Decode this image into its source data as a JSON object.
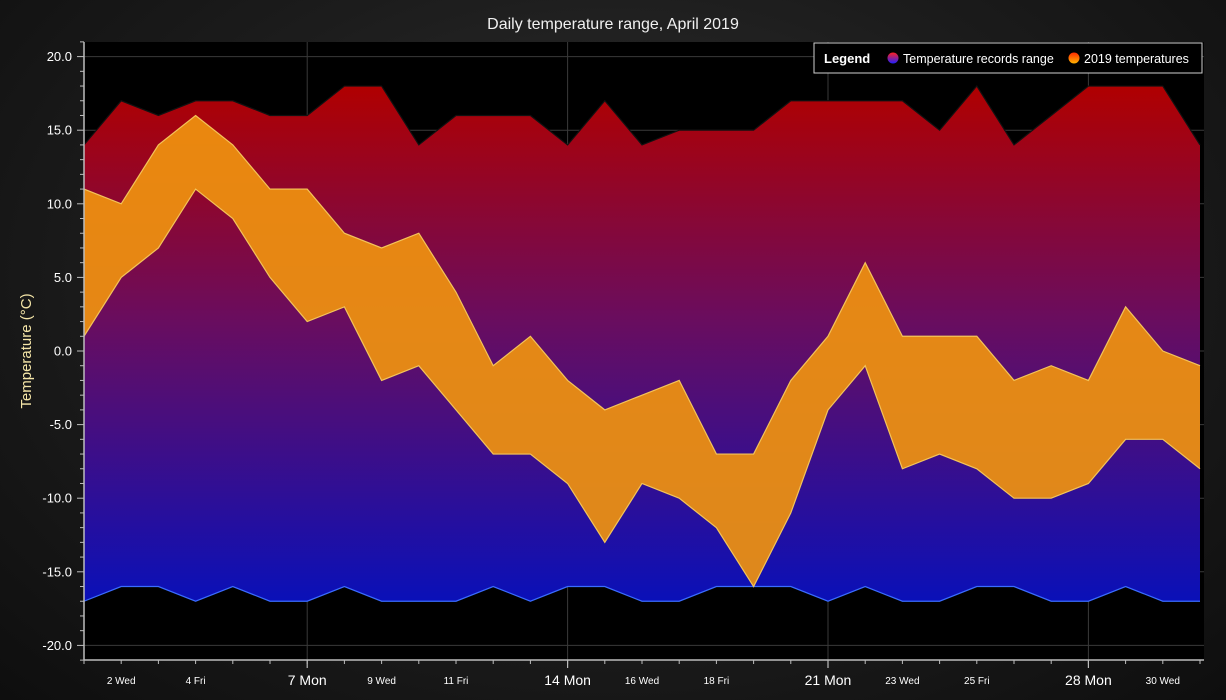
{
  "chart_data": {
    "type": "area",
    "title": "Daily temperature range, April 2019",
    "xlabel": "",
    "ylabel": "Temperature (°C)",
    "ylim": [
      -21,
      21
    ],
    "xlim": [
      1,
      31
    ],
    "y_ticks": [
      {
        "value": 20,
        "label": "20.0"
      },
      {
        "value": 15,
        "label": "15.0"
      },
      {
        "value": 10,
        "label": "10.0"
      },
      {
        "value": 5,
        "label": "5.0"
      },
      {
        "value": 0,
        "label": "0.0"
      },
      {
        "value": -5,
        "label": "-5.0"
      },
      {
        "value": -10,
        "label": "-10.0"
      },
      {
        "value": -15,
        "label": "-15.0"
      },
      {
        "value": -20,
        "label": "-20.0"
      }
    ],
    "x_ticks_major": [
      {
        "day": 7,
        "label": "7 Mon"
      },
      {
        "day": 14,
        "label": "14 Mon"
      },
      {
        "day": 21,
        "label": "21 Mon"
      },
      {
        "day": 28,
        "label": "28 Mon"
      }
    ],
    "x_ticks_minor": [
      {
        "day": 2,
        "label": "2 Wed"
      },
      {
        "day": 4,
        "label": "4 Fri"
      },
      {
        "day": 9,
        "label": "9 Wed"
      },
      {
        "day": 11,
        "label": "11 Fri"
      },
      {
        "day": 16,
        "label": "16 Wed"
      },
      {
        "day": 18,
        "label": "18 Fri"
      },
      {
        "day": 23,
        "label": "23 Wed"
      },
      {
        "day": 25,
        "label": "25 Fri"
      },
      {
        "day": 30,
        "label": "30 Wed"
      }
    ],
    "legend": {
      "title": "Legend",
      "position": "top-right",
      "entries": [
        "Temperature records range",
        "2019 temperatures"
      ]
    },
    "series": [
      {
        "name": "Temperature records range",
        "days": [
          1,
          2,
          3,
          4,
          5,
          6,
          7,
          8,
          9,
          10,
          11,
          12,
          13,
          14,
          15,
          16,
          17,
          18,
          19,
          20,
          21,
          22,
          23,
          24,
          25,
          26,
          27,
          28,
          29,
          30,
          31
        ],
        "high": [
          14,
          17,
          16,
          17,
          17,
          16,
          16,
          18,
          18,
          14,
          16,
          16,
          16,
          14,
          17,
          14,
          15,
          15,
          15,
          17,
          17,
          17,
          17,
          15,
          18,
          14,
          16,
          18,
          18,
          18,
          14
        ],
        "low": [
          -17,
          -16,
          -16,
          -17,
          -16,
          -17,
          -17,
          -16,
          -17,
          -17,
          -17,
          -16,
          -17,
          -16,
          -16,
          -17,
          -17,
          -16,
          -16,
          -16,
          -17,
          -16,
          -17,
          -17,
          -16,
          -16,
          -17,
          -17,
          -16,
          -17,
          -17
        ]
      },
      {
        "name": "2019 temperatures",
        "days": [
          1,
          2,
          3,
          4,
          5,
          6,
          7,
          8,
          9,
          10,
          11,
          12,
          13,
          14,
          15,
          16,
          17,
          18,
          19,
          20,
          21,
          22,
          23,
          24,
          25,
          26,
          27,
          28,
          29,
          30,
          31
        ],
        "high": [
          11,
          10,
          14,
          16,
          14,
          11,
          11,
          8,
          7,
          8,
          4,
          -1,
          1,
          -2,
          -4,
          -3,
          -2,
          -7,
          -7,
          -2,
          1,
          6,
          1,
          1,
          1,
          -2,
          -1,
          -2,
          3,
          0,
          -1
        ],
        "low": [
          1,
          5,
          7,
          11,
          9,
          5,
          2,
          3,
          -2,
          -1,
          -4,
          -7,
          -7,
          -9,
          -13,
          -9,
          -10,
          -12,
          -16,
          -11,
          -4,
          -1,
          -8,
          -7,
          -8,
          -10,
          -10,
          -9,
          -6,
          -6,
          -8
        ]
      }
    ],
    "colors": {
      "records_top": "#b00000",
      "records_mid": "#6a0d5e",
      "records_bottom": "#0a10b8",
      "records_border": "#111111",
      "records_low_line": "#3a6cff",
      "current_fill": "#f0930f",
      "current_border": "#f3c45a",
      "legend_records_swatch_top": "#ff2020",
      "legend_records_swatch_bottom": "#2020ff",
      "legend_current_swatch_top": "#ff2a00",
      "legend_current_swatch_bottom": "#ffb400",
      "axis": "#bdbdbd",
      "grid": "#3a3a3a",
      "ylabel": "#f5e6a8",
      "title": "#f0f0f0"
    }
  }
}
